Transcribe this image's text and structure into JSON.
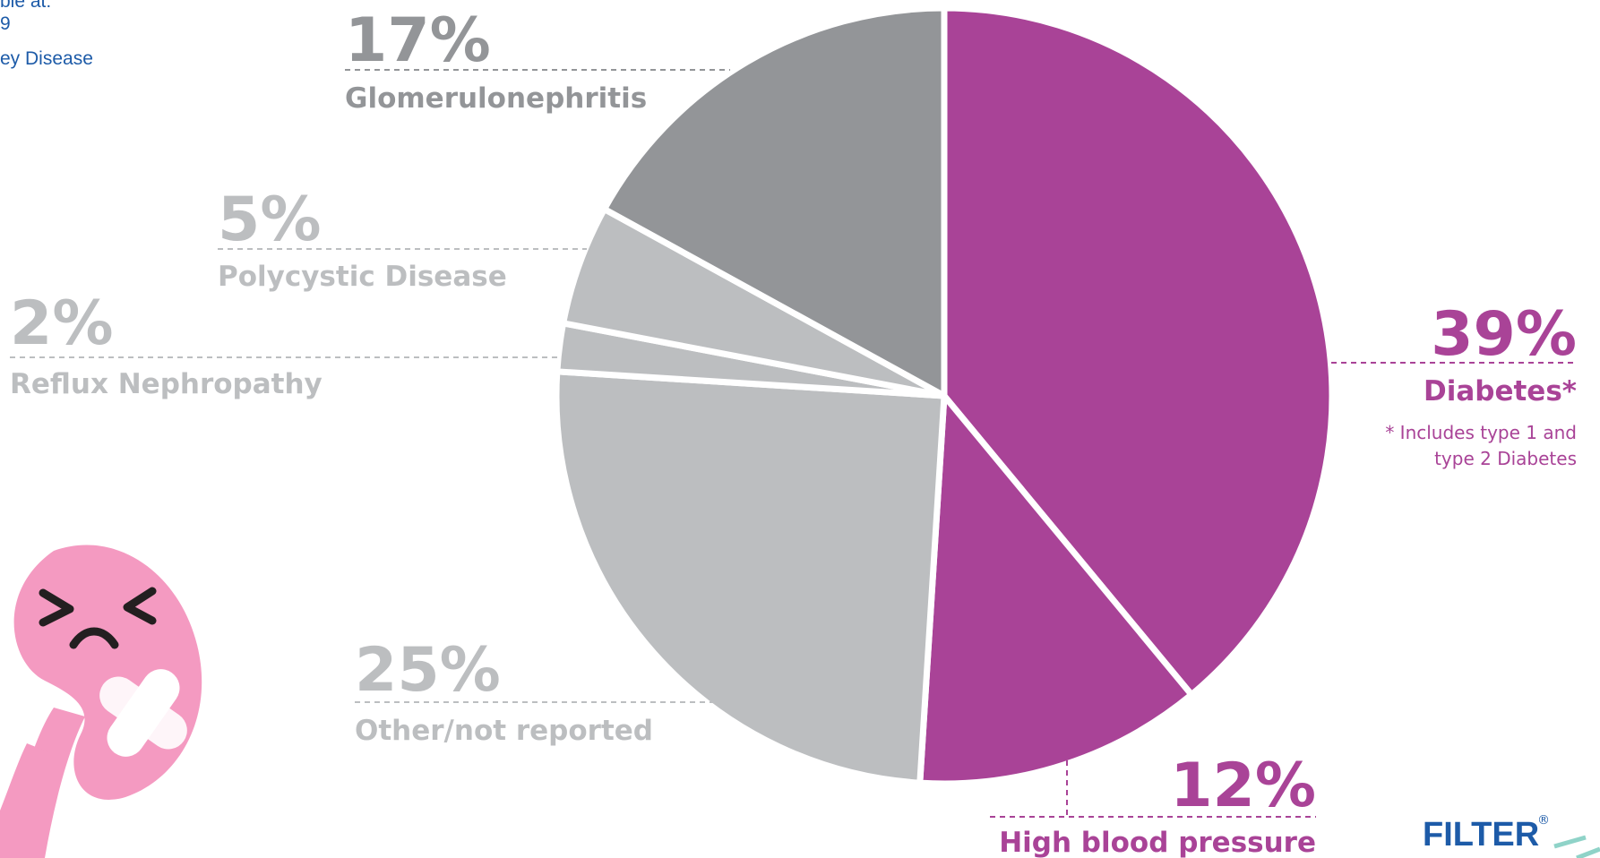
{
  "chart_data": {
    "type": "pie",
    "categories": [
      "Diabetes*",
      "High blood pressure",
      "Other/not reported",
      "Reflux Nephropathy",
      "Polycystic Disease",
      "Glomerulonephritis"
    ],
    "values": [
      39,
      12,
      25,
      2,
      5,
      17
    ],
    "value_labels": [
      "39%",
      "12%",
      "25%",
      "2%",
      "5%",
      "17%"
    ],
    "colors": [
      "#a94397",
      "#a94397",
      "#bcbec0",
      "#bcbec0",
      "#bcbec0",
      "#939598"
    ],
    "annotation": [
      "* Includes type 1 and",
      "type 2 Diabetes"
    ]
  },
  "source_fragments": [
    "ble at:",
    "9",
    "ey Disease"
  ],
  "logo": {
    "text": "FILTER",
    "mark": "®"
  }
}
